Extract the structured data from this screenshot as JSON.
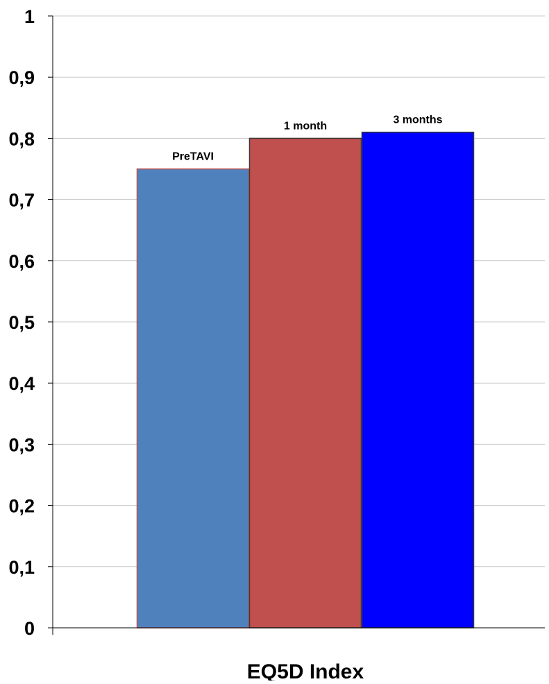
{
  "chart_data": {
    "type": "bar",
    "xlabel": "EQ5D Index",
    "ylim": [
      0,
      1
    ],
    "yticks": [
      "0",
      "0,1",
      "0,2",
      "0,3",
      "0,4",
      "0,5",
      "0,6",
      "0,7",
      "0,8",
      "0,9",
      "1"
    ],
    "grid": true,
    "legend": "none",
    "categories": [
      "PreTAVI",
      "1 month",
      "3 months"
    ],
    "values": [
      0.75,
      0.8,
      0.81
    ],
    "colors": [
      "#4f81bd",
      "#c0504d",
      "#0000ff"
    ],
    "bar_outlines": [
      "#c0504d",
      "#3a3a3a",
      "#3a3a3a"
    ],
    "gridline_color": "#c8c8c8",
    "axis_color": "#000000"
  }
}
